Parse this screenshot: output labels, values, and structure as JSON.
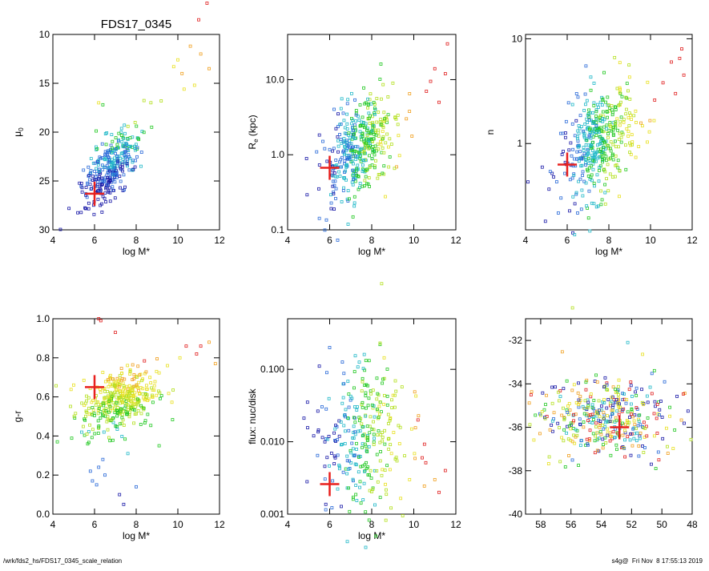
{
  "figure_title": "FDS17_0345",
  "footer": {
    "left": "/wrk/fds2_hs/FDS17_0345_scale_relation",
    "right": "s4g@  Fri Nov  8 17:55:13 2019"
  },
  "colors": {
    "target_marker": "#e8201e",
    "axis": "#000000",
    "scale": [
      "#1a1aa8",
      "#2a6ad8",
      "#20b8c8",
      "#22c822",
      "#b4e020",
      "#e8e020",
      "#f0a020",
      "#e02020"
    ]
  },
  "chart_data": [
    {
      "id": "mu0",
      "type": "scatter",
      "title": "FDS17_0345",
      "xlabel": "log M*",
      "ylabel_main": "μ",
      "ylabel_sub": "0",
      "xlim": [
        4,
        12
      ],
      "ylim": [
        30,
        10
      ],
      "xticks": [
        4,
        6,
        8,
        10,
        12
      ],
      "yticks": [
        10,
        15,
        20,
        25,
        30
      ],
      "yscale": "linear",
      "target": {
        "x": 6.0,
        "y": 26.3
      },
      "x_series": [
        5.5,
        7.5,
        9.5,
        10.8
      ],
      "cluster": {
        "center": [
          6.8,
          23.6
        ],
        "spread": [
          0.7,
          1.5
        ],
        "slope": -1.9,
        "count": 320
      },
      "extra_points": [
        [
          11.4,
          6.8
        ],
        [
          11.0,
          8.5
        ],
        [
          10.6,
          11.2
        ],
        [
          11.1,
          12.0
        ],
        [
          11.5,
          13.5
        ],
        [
          10.2,
          14.0
        ],
        [
          10.8,
          15.2
        ],
        [
          10.3,
          15.6
        ],
        [
          9.2,
          16.8
        ],
        [
          10.0,
          12.6
        ],
        [
          9.8,
          13.3
        ],
        [
          6.4,
          17.2
        ],
        [
          6.2,
          17.0
        ]
      ],
      "color_by": "y"
    },
    {
      "id": "re",
      "type": "scatter",
      "xlabel": "log M*",
      "ylabel_main": "R",
      "ylabel_sub": "e",
      "ylabel_tail": " (kpc)",
      "xlim": [
        4,
        12
      ],
      "ylim": [
        0.1,
        40
      ],
      "xticks": [
        4,
        6,
        8,
        10,
        12
      ],
      "yticks": [
        0.1,
        1.0,
        10.0
      ],
      "ytick_labels": [
        "0.1",
        "1.0",
        "10.0"
      ],
      "yscale": "log",
      "target": {
        "x": 6.0,
        "y": 0.67
      },
      "cluster": {
        "center": [
          7.4,
          1.2
        ],
        "spread": [
          0.9,
          0.3
        ],
        "slope": 0.2,
        "count": 420
      },
      "extra_points": [
        [
          11.6,
          30
        ],
        [
          11.0,
          14
        ],
        [
          11.5,
          12
        ],
        [
          10.8,
          9.5
        ],
        [
          10.6,
          7
        ],
        [
          9.8,
          6.5
        ],
        [
          11.2,
          5
        ]
      ],
      "color_by": "x"
    },
    {
      "id": "n",
      "type": "scatter",
      "xlabel": "log M*",
      "ylabel_main": "n",
      "xlim": [
        4,
        12
      ],
      "ylim": [
        0.15,
        11
      ],
      "xticks": [
        4,
        6,
        8,
        10,
        12
      ],
      "yticks": [
        1,
        10
      ],
      "ytick_labels": [
        "1",
        "10"
      ],
      "yscale": "log",
      "target": {
        "x": 6.0,
        "y": 0.63
      },
      "cluster": {
        "center": [
          7.5,
          1.0
        ],
        "spread": [
          0.9,
          0.25
        ],
        "slope": 0.12,
        "count": 420
      },
      "extra_points": [
        [
          11.5,
          8
        ],
        [
          11.0,
          6
        ],
        [
          11.6,
          4.5
        ],
        [
          10.6,
          3.8
        ],
        [
          11.2,
          3.0
        ],
        [
          10.2,
          2.6
        ],
        [
          6.9,
          5.5
        ],
        [
          11.4,
          6.5
        ]
      ],
      "color_by": "x"
    },
    {
      "id": "gr",
      "type": "scatter",
      "xlabel": "log M*",
      "ylabel_main": "g-r",
      "xlim": [
        4,
        12
      ],
      "ylim": [
        0.0,
        1.0
      ],
      "xticks": [
        4,
        6,
        8,
        10,
        12
      ],
      "yticks": [
        0.0,
        0.2,
        0.4,
        0.6,
        0.8,
        1.0
      ],
      "ytick_labels": [
        "0.0",
        "0.2",
        "0.4",
        "0.6",
        "0.8",
        "1.0"
      ],
      "yscale": "linear",
      "target": {
        "x": 6.0,
        "y": 0.65
      },
      "cluster": {
        "center": [
          7.2,
          0.58
        ],
        "spread": [
          0.9,
          0.08
        ],
        "slope": 0.03,
        "count": 380
      },
      "extra_points": [
        [
          6.5,
          0.2
        ],
        [
          6.2,
          0.24
        ],
        [
          6.4,
          0.28
        ],
        [
          5.8,
          0.22
        ],
        [
          6.1,
          0.15
        ],
        [
          7.2,
          0.1
        ],
        [
          7.4,
          0.05
        ],
        [
          5.9,
          0.17
        ],
        [
          8.0,
          0.14
        ],
        [
          7.6,
          0.31
        ],
        [
          6.2,
          1.0
        ],
        [
          6.3,
          0.99
        ],
        [
          7.0,
          0.93
        ],
        [
          10.4,
          0.86
        ],
        [
          10.9,
          0.82
        ],
        [
          11.5,
          0.88
        ],
        [
          11.1,
          0.86
        ],
        [
          9.5,
          0.76
        ],
        [
          11.8,
          0.77
        ],
        [
          10.1,
          0.8
        ],
        [
          9.1,
          0.35
        ]
      ],
      "color_by": "y"
    },
    {
      "id": "flux",
      "type": "scatter",
      "xlabel": "log M*",
      "ylabel_main": "flux: nuc/disk",
      "xlim": [
        4,
        12
      ],
      "ylim": [
        0.001,
        0.5
      ],
      "xticks": [
        4,
        6,
        8,
        10,
        12
      ],
      "yticks": [
        0.001,
        0.01,
        0.1
      ],
      "ytick_labels": [
        "0.001",
        "0.010",
        "0.100"
      ],
      "yscale": "log",
      "target": {
        "x": 6.0,
        "y": 0.0026
      },
      "cluster": {
        "center": [
          7.6,
          0.012
        ],
        "spread": [
          1.0,
          0.55
        ],
        "slope": 0.0,
        "count": 300
      },
      "extra_points": [
        [
          11.5,
          0.004
        ],
        [
          11.0,
          0.003
        ],
        [
          11.2,
          0.002
        ],
        [
          10.4,
          0.006
        ],
        [
          9.8,
          0.003
        ],
        [
          10.2,
          0.02
        ],
        [
          6.0,
          0.2
        ],
        [
          9.9,
          0.015
        ]
      ],
      "color_by": "x"
    },
    {
      "id": "coord",
      "type": "scatter",
      "xlabel": "",
      "xlim": [
        59,
        48
      ],
      "ylim": [
        -40,
        -31
      ],
      "xticks": [
        58,
        56,
        54,
        52,
        50,
        48
      ],
      "yticks": [
        -40,
        -38,
        -36,
        -34,
        -32
      ],
      "yscale": "linear",
      "target": {
        "x": 52.8,
        "y": -36.0
      },
      "cluster": {
        "center": [
          53.5,
          -35.5
        ],
        "spread": [
          2.2,
          0.9
        ],
        "slope": 0.0,
        "count": 380
      },
      "extra_points": [
        [
          55.9,
          -30.5
        ],
        [
          50.2,
          -37.5
        ],
        [
          49.6,
          -37.2
        ],
        [
          50.7,
          -37.7
        ],
        [
          51.0,
          -36.4
        ],
        [
          57.7,
          -35.6
        ],
        [
          57.3,
          -35.9
        ],
        [
          50.4,
          -37.9
        ]
      ],
      "color_by": "random"
    }
  ]
}
